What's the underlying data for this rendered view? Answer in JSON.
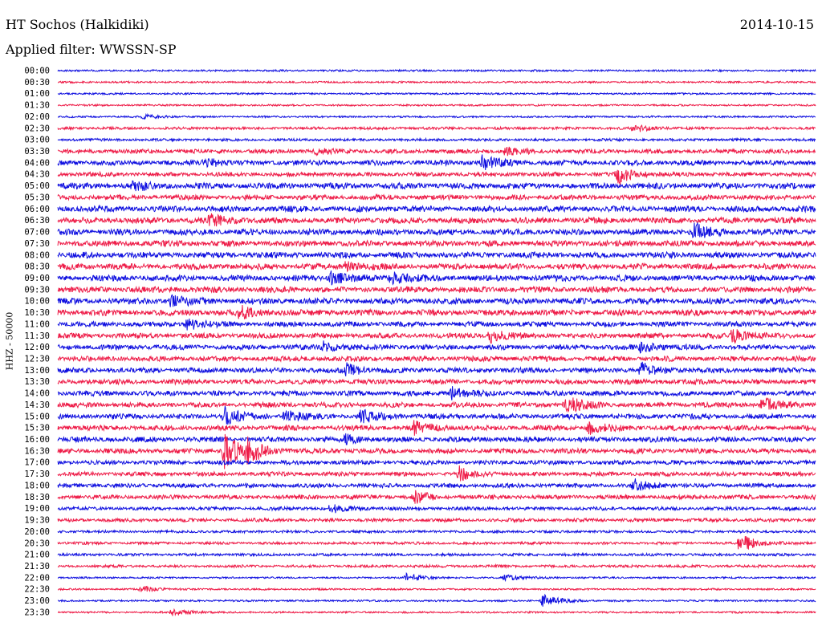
{
  "header": {
    "station": "HT Sochos (Halkidiki)",
    "date": "2014-10-15",
    "filter_label": "Applied filter:",
    "filter_name": "WWSSN-SP"
  },
  "colors": {
    "even_trace": "#1010e0",
    "odd_trace": "#ee1c48"
  },
  "chart_data": {
    "type": "helicorder",
    "ylabel": "HHZ - 50000",
    "rows": [
      "00:00",
      "00:30",
      "01:00",
      "01:30",
      "02:00",
      "02:30",
      "03:00",
      "03:30",
      "04:00",
      "04:30",
      "05:00",
      "05:30",
      "06:00",
      "06:30",
      "07:00",
      "07:30",
      "08:00",
      "08:30",
      "09:00",
      "09:30",
      "10:00",
      "10:30",
      "11:00",
      "11:30",
      "12:00",
      "12:30",
      "13:00",
      "13:30",
      "14:00",
      "14:30",
      "15:00",
      "15:30",
      "16:00",
      "16:30",
      "17:00",
      "17:30",
      "18:00",
      "18:30",
      "19:00",
      "19:30",
      "20:00",
      "20:30",
      "21:00",
      "21:30",
      "22:00",
      "22:30",
      "23:00",
      "23:30"
    ],
    "noise_level": [
      1,
      1,
      1,
      1,
      1,
      2,
      2,
      4,
      5,
      4,
      6,
      5,
      6,
      6,
      6,
      6,
      6,
      6,
      6,
      6,
      6,
      6,
      5,
      5,
      5,
      5,
      5,
      5,
      5,
      5,
      5,
      5,
      5,
      5,
      4,
      4,
      4,
      4,
      3,
      3,
      2,
      2,
      2,
      2,
      1,
      1,
      1,
      1
    ],
    "events": [
      {
        "row": 4,
        "at": 0.11,
        "amp": 3
      },
      {
        "row": 5,
        "at": 0.76,
        "amp": 5
      },
      {
        "row": 7,
        "at": 0.34,
        "amp": 4
      },
      {
        "row": 7,
        "at": 0.59,
        "amp": 5
      },
      {
        "row": 8,
        "at": 0.19,
        "amp": 8
      },
      {
        "row": 8,
        "at": 0.56,
        "amp": 9
      },
      {
        "row": 9,
        "at": 0.74,
        "amp": 12
      },
      {
        "row": 10,
        "at": 0.1,
        "amp": 6
      },
      {
        "row": 13,
        "at": 0.2,
        "amp": 8
      },
      {
        "row": 14,
        "at": 0.84,
        "amp": 10
      },
      {
        "row": 17,
        "at": 0.38,
        "amp": 6
      },
      {
        "row": 18,
        "at": 0.36,
        "amp": 8
      },
      {
        "row": 18,
        "at": 0.44,
        "amp": 8
      },
      {
        "row": 20,
        "at": 0.15,
        "amp": 8
      },
      {
        "row": 21,
        "at": 0.24,
        "amp": 7
      },
      {
        "row": 22,
        "at": 0.17,
        "amp": 8
      },
      {
        "row": 23,
        "at": 0.57,
        "amp": 8
      },
      {
        "row": 23,
        "at": 0.89,
        "amp": 9
      },
      {
        "row": 24,
        "at": 0.35,
        "amp": 6
      },
      {
        "row": 24,
        "at": 0.77,
        "amp": 7
      },
      {
        "row": 26,
        "at": 0.38,
        "amp": 8
      },
      {
        "row": 26,
        "at": 0.77,
        "amp": 9
      },
      {
        "row": 28,
        "at": 0.52,
        "amp": 7
      },
      {
        "row": 29,
        "at": 0.67,
        "amp": 12
      },
      {
        "row": 29,
        "at": 0.93,
        "amp": 9
      },
      {
        "row": 30,
        "at": 0.22,
        "amp": 11
      },
      {
        "row": 30,
        "at": 0.3,
        "amp": 8
      },
      {
        "row": 30,
        "at": 0.4,
        "amp": 8
      },
      {
        "row": 31,
        "at": 0.47,
        "amp": 9
      },
      {
        "row": 31,
        "at": 0.7,
        "amp": 8
      },
      {
        "row": 32,
        "at": 0.38,
        "amp": 5
      },
      {
        "row": 33,
        "at": 0.22,
        "amp": 22
      },
      {
        "row": 33,
        "at": 0.25,
        "amp": 14
      },
      {
        "row": 35,
        "at": 0.53,
        "amp": 8
      },
      {
        "row": 36,
        "at": 0.76,
        "amp": 7
      },
      {
        "row": 37,
        "at": 0.47,
        "amp": 7
      },
      {
        "row": 38,
        "at": 0.36,
        "amp": 5
      },
      {
        "row": 41,
        "at": 0.9,
        "amp": 13
      },
      {
        "row": 44,
        "at": 0.46,
        "amp": 5
      },
      {
        "row": 44,
        "at": 0.59,
        "amp": 4
      },
      {
        "row": 45,
        "at": 0.11,
        "amp": 4
      },
      {
        "row": 46,
        "at": 0.64,
        "amp": 8
      },
      {
        "row": 47,
        "at": 0.15,
        "amp": 5
      }
    ]
  }
}
